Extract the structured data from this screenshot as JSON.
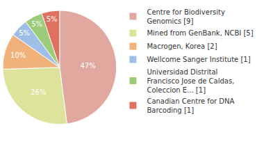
{
  "chart_data": {
    "type": "pie",
    "categories": [
      "Centre for Biodiversity Genomics [9]",
      "Mined from GenBank, NCBI [5]",
      "Macrogen, Korea [2]",
      "Wellcome Sanger Institute [1]",
      "Universidad Distrital Francisco Jose de Caldas, Coleccion E... [1]",
      "Canadian Centre for DNA Barcoding [1]"
    ],
    "values": [
      47,
      26,
      10,
      5,
      5,
      5
    ],
    "value_labels": [
      "47%",
      "26%",
      "10%",
      "5%",
      "5%",
      "5%"
    ],
    "colors": [
      "#e0a89f",
      "#dde39a",
      "#f0b27a",
      "#9ec0e8",
      "#9ccc7a",
      "#e07060"
    ],
    "data_labels": true,
    "legend": "right"
  }
}
